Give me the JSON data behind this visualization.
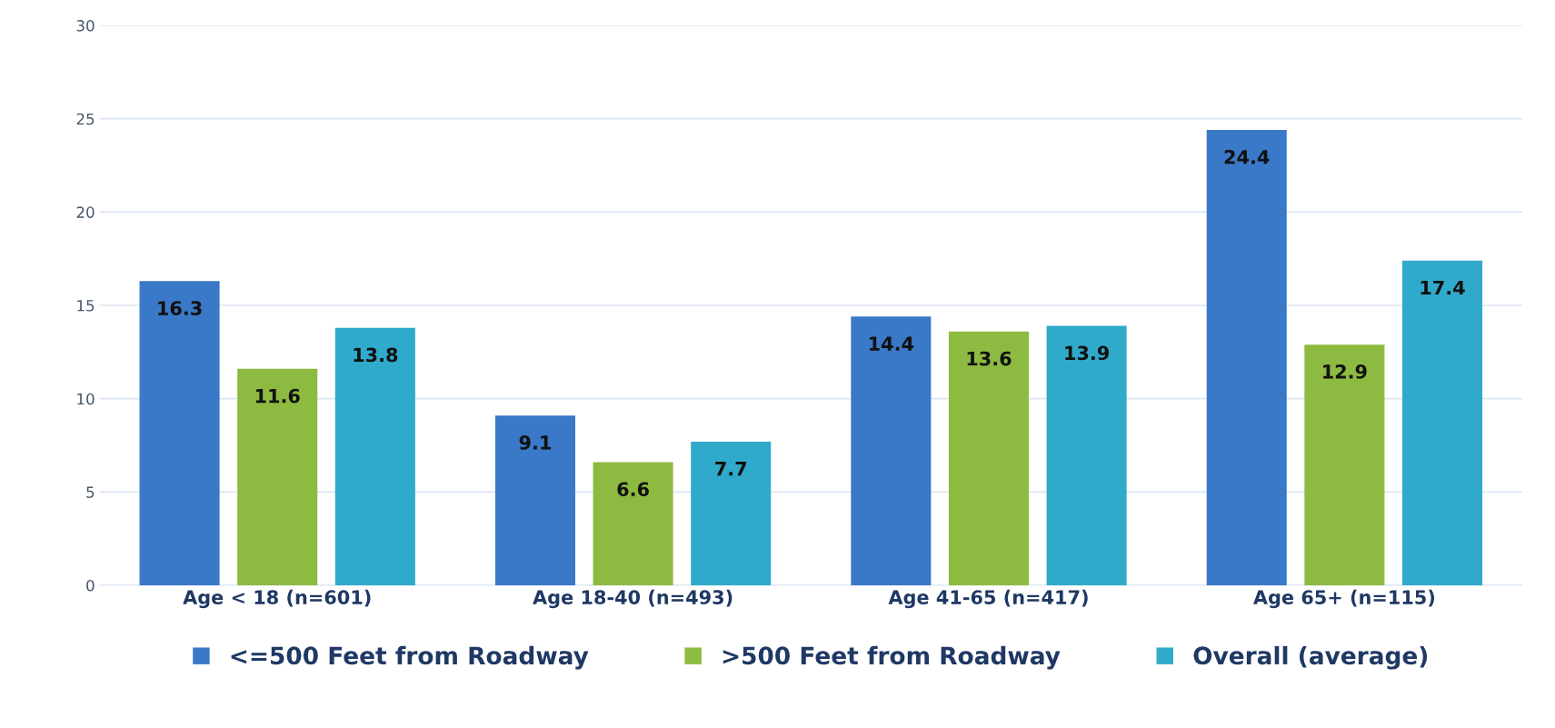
{
  "chart_data": {
    "type": "bar",
    "categories": [
      "Age < 18 (n=601)",
      "Age 18-40 (n=493)",
      "Age 41-65 (n=417)",
      "Age 65+ (n=115)"
    ],
    "series": [
      {
        "name": "<=500 Feet from Roadway",
        "color": "#3a78c8",
        "values": [
          16.3,
          9.1,
          14.4,
          24.4
        ]
      },
      {
        "name": ">500 Feet from Roadway",
        "color": "#8dba40",
        "values": [
          11.6,
          6.6,
          13.6,
          12.9
        ]
      },
      {
        "name": "Overall (average)",
        "color": "#30aacb",
        "values": [
          13.8,
          7.7,
          13.9,
          17.4
        ]
      }
    ],
    "ylim": [
      0,
      30
    ],
    "yticks": [
      0,
      5,
      10,
      15,
      20,
      25,
      30
    ],
    "grid": "y",
    "legend": "bottom",
    "data_labels": true
  }
}
